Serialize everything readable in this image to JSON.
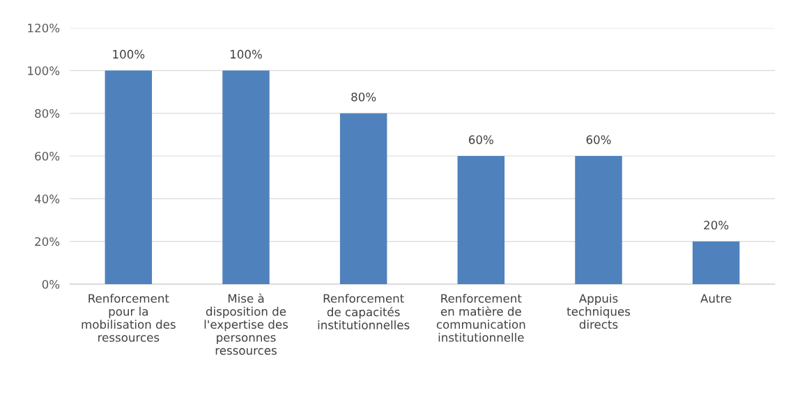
{
  "chart_data": {
    "type": "bar",
    "categories": [
      "Renforcement\npour la\nmobilisation des\nressources",
      "Mise à\ndisposition de\nl'expertise des\npersonnes\nressources",
      "Renforcement\nde capacités\ninstitutionnelles",
      "Renforcement\nen matière de\ncommunication\ninstitutionnelle",
      "Appuis\ntechniques\ndirects",
      "Autre"
    ],
    "values": [
      100,
      100,
      80,
      60,
      60,
      20
    ],
    "value_labels": [
      "100%",
      "100%",
      "80%",
      "60%",
      "60%",
      "20%"
    ],
    "color": "#4f81bd",
    "ylim": [
      0,
      120
    ],
    "yticks": [
      {
        "value": 0,
        "label": "0%"
      },
      {
        "value": 20,
        "label": "20%"
      },
      {
        "value": 40,
        "label": "40%"
      },
      {
        "value": 60,
        "label": "60%"
      },
      {
        "value": 80,
        "label": "80%"
      },
      {
        "value": 100,
        "label": "100%"
      },
      {
        "value": 120,
        "label": "120%"
      }
    ],
    "grid": "y",
    "legend": false
  }
}
